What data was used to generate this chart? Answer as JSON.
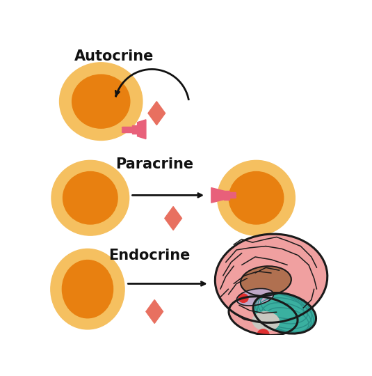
{
  "bg_color": "#ffffff",
  "cell_outer_color": "#f5c060",
  "cell_inner_color": "#e88010",
  "receptor_color": "#e8607a",
  "ligand_color": "#e87060",
  "arrow_color": "#111111",
  "text_color": "#111111",
  "labels": [
    "Autocrine",
    "Paracrine",
    "Endocrine"
  ],
  "label_fontsize": 15,
  "brain_pink": "#f0a0a0",
  "brain_pink2": "#f5b0b0",
  "brain_brown": "#b07050",
  "brain_purple": "#c0a8c8",
  "brain_teal": "#3ab0a0",
  "brain_teal2": "#2a9088",
  "brain_gray": "#c8c8c0",
  "brain_red": "#e03030",
  "brain_outline": "#1a1a1a",
  "figsize": [
    5.35,
    5.4
  ],
  "dpi": 100
}
